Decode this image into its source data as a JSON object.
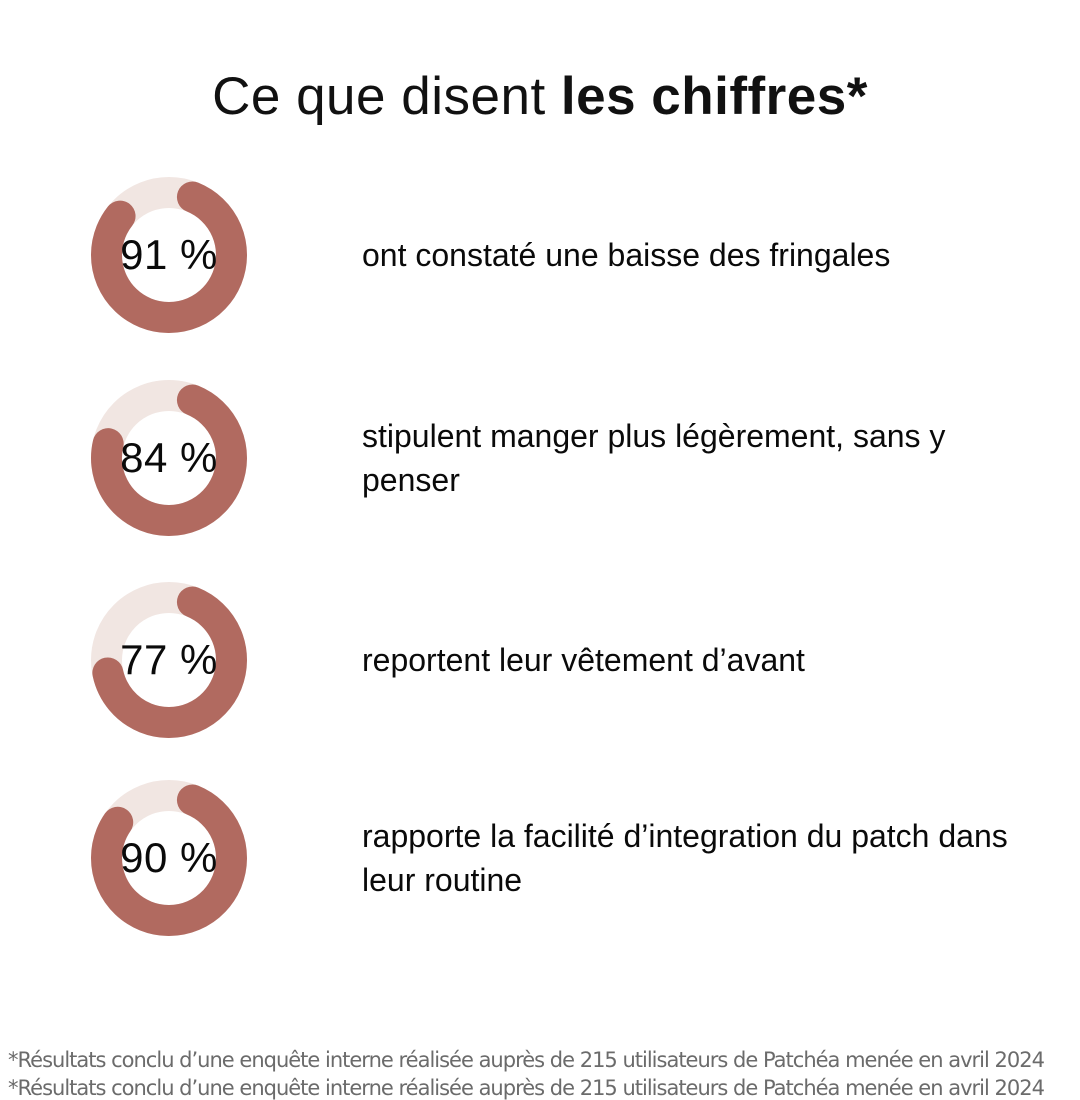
{
  "title": {
    "regular": "Ce que disent ",
    "bold": "les chiffres*"
  },
  "chart_data": {
    "type": "pie",
    "subtype": "donut-progress-list",
    "title": "Ce que disent les chiffres*",
    "legend_position": "right-of-each-donut",
    "colors": {
      "fill": "#b16a60",
      "track": "#f1e6e2"
    },
    "items": [
      {
        "percent": 91,
        "label": "91 %",
        "text": "ont constaté une baisse des fringales"
      },
      {
        "percent": 84,
        "label": "84 %",
        "text": "stipulent manger plus légèrement, sans y penser"
      },
      {
        "percent": 77,
        "label": "77 %",
        "text": "reportent leur vêtement d’avant"
      },
      {
        "percent": 90,
        "label": "90 %",
        "text": "rapporte la facilité d’integration du patch dans leur routine"
      }
    ]
  },
  "footer": {
    "text": "*Résultats conclu d’une enquête interne réalisée auprès de 215 utilisateurs de Patchéa menée en avril 2024"
  }
}
